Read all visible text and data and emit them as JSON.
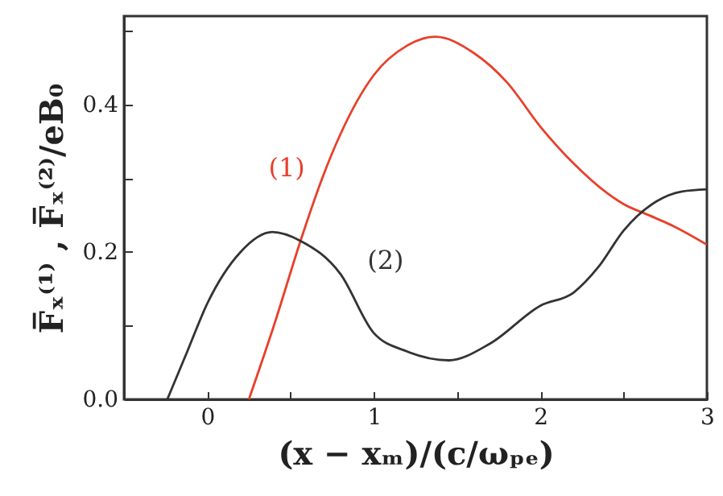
{
  "chart_data": {
    "type": "line",
    "xlabel": "(x − xₘ)/(c/ωₚₑ)",
    "ylabel": "F̅ₓ⁽¹⁾ , F̅ₓ⁽²⁾/eB₀",
    "xlim": [
      -0.5,
      3
    ],
    "xticks": [
      {
        "value": -0.5,
        "label": null
      },
      0,
      {
        "value": 0.5,
        "label": null
      },
      1,
      {
        "value": 1.5,
        "label": null
      },
      2,
      {
        "value": 2.5,
        "label": null
      },
      3
    ],
    "ylim": [
      0,
      0.52
    ],
    "yticks": [
      {
        "value": 0,
        "label": "0.0"
      },
      {
        "value": 0.1,
        "label": null
      },
      {
        "value": 0.2,
        "label": "0.2"
      },
      {
        "value": 0.3,
        "label": null
      },
      {
        "value": 0.4,
        "label": "0.4"
      },
      {
        "value": 0.5,
        "label": null
      }
    ],
    "series": [
      {
        "name": "(1)",
        "color": "#e8402a",
        "x": [
          0.25,
          0.4,
          0.56,
          0.69,
          0.8,
          1.0,
          1.2,
          1.37,
          1.6,
          1.8,
          2.0,
          2.2,
          2.4,
          2.5,
          2.65,
          2.8,
          3.0
        ],
        "values": [
          0,
          0.1,
          0.215,
          0.3,
          0.36,
          0.44,
          0.48,
          0.492,
          0.47,
          0.43,
          0.37,
          0.32,
          0.28,
          0.265,
          0.25,
          0.235,
          0.21
        ]
      },
      {
        "name": "(2)",
        "color": "#333333",
        "x": [
          -0.24,
          -0.12,
          0,
          0.2,
          0.39,
          0.56,
          0.8,
          1.0,
          1.2,
          1.45,
          1.7,
          2.0,
          2.2,
          2.35,
          2.5,
          2.7,
          2.85,
          3.0
        ],
        "values": [
          0,
          0.065,
          0.13,
          0.2,
          0.227,
          0.215,
          0.17,
          0.09,
          0.065,
          0.053,
          0.076,
          0.127,
          0.145,
          0.18,
          0.229,
          0.269,
          0.282,
          0.285
        ]
      }
    ]
  }
}
